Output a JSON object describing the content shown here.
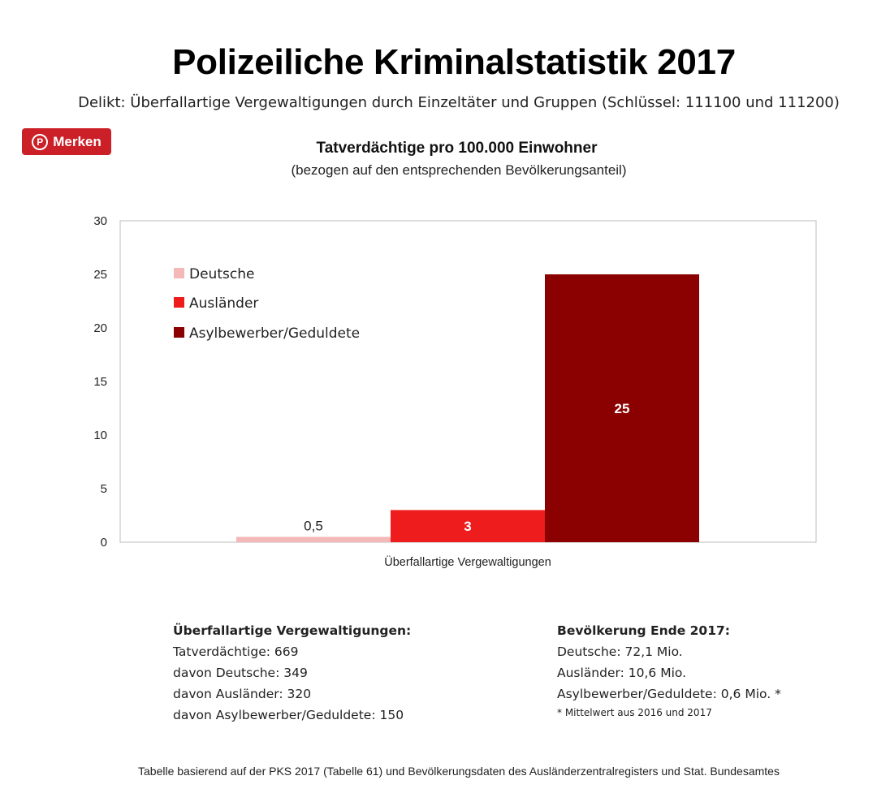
{
  "title": "Polizeiliche Kriminalstatistik 2017",
  "subtitle": "Delikt: Überfallartige Vergewaltigungen durch Einzeltäter und Gruppen (Schlüssel: 111100 und 111200)",
  "merken_button": {
    "label": "Merken",
    "icon": "pinterest-icon"
  },
  "chart_data": {
    "type": "bar",
    "title": "Tatverdächtige pro 100.000 Einwohner",
    "subtitle": "(bezogen auf den entsprechenden Bevölkerungsanteil)",
    "categories": [
      "Überfallartige Vergewaltigungen"
    ],
    "series": [
      {
        "name": "Deutsche",
        "values": [
          0.5
        ],
        "label": "0,5",
        "color": "#f4b8b8"
      },
      {
        "name": "Ausländer",
        "values": [
          3
        ],
        "label": "3",
        "color": "#ee1c1c"
      },
      {
        "name": "Asylbewerber/Geduldete",
        "values": [
          25
        ],
        "label": "25",
        "color": "#8b0000"
      }
    ],
    "ylim": [
      0,
      30
    ],
    "yticks": [
      0,
      5,
      10,
      15,
      20,
      25,
      30
    ],
    "grid": false,
    "legend": "top-left",
    "xlabel": "",
    "ylabel": ""
  },
  "info_left": {
    "heading": "Überfallartige Vergewaltigungen:",
    "lines": [
      "Tatverdächtige: 669",
      "davon Deutsche: 349",
      "davon Ausländer: 320",
      "davon Asylbewerber/Geduldete: 150"
    ]
  },
  "info_right": {
    "heading": "Bevölkerung Ende 2017:",
    "lines": [
      "Deutsche: 72,1 Mio.",
      "Ausländer: 10,6 Mio.",
      "Asylbewerber/Geduldete: 0,6 Mio. *"
    ],
    "note": "* Mittelwert aus 2016 und 2017"
  },
  "footer": "Tabelle basierend auf der PKS 2017 (Tabelle 61) und Bevölkerungsdaten des Ausländerzentralregisters und Stat. Bundesamtes"
}
